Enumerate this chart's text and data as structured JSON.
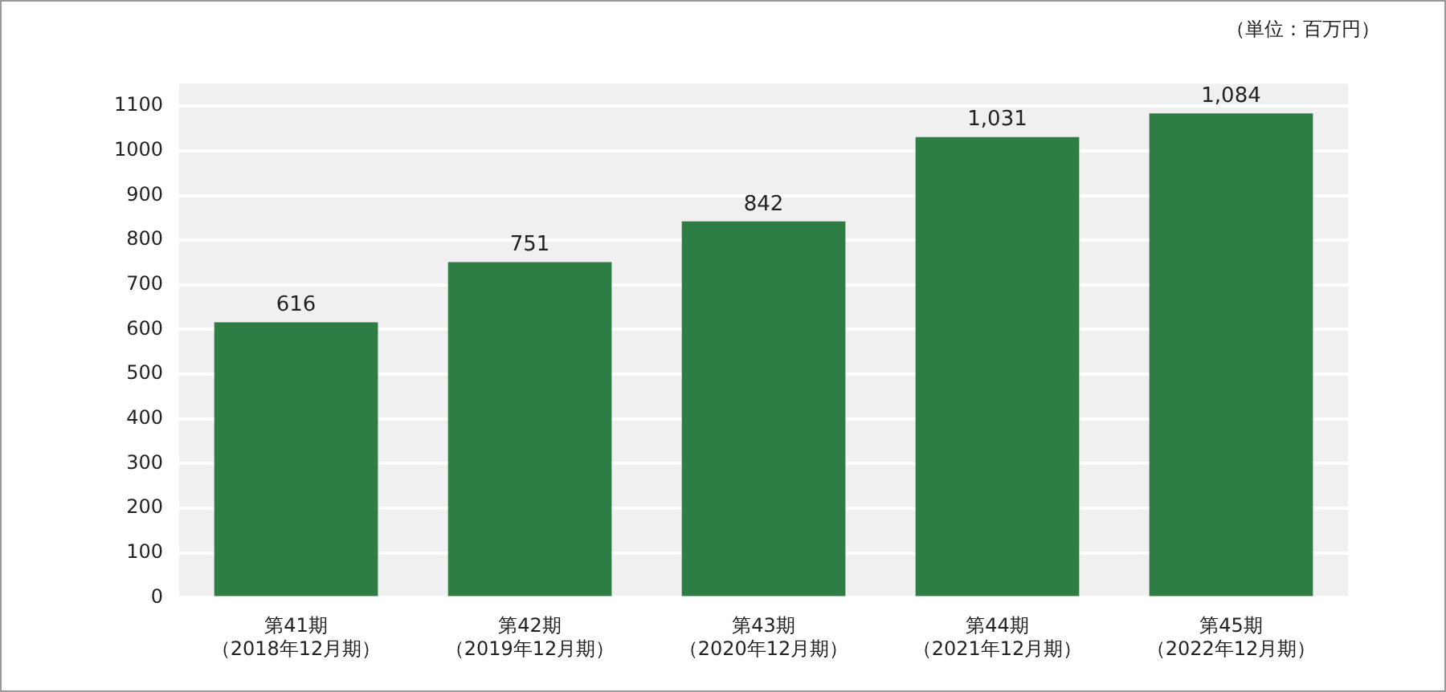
{
  "chart_data": {
    "type": "bar",
    "categories": [
      "第41期（2018年12月期）",
      "第42期（2019年12月期）",
      "第43期（2020年12月期）",
      "第44期（2021年12月期）",
      "第45期（2022年12月期）"
    ],
    "values": [
      616,
      751,
      842,
      1031,
      1084
    ],
    "value_labels": [
      "616",
      "751",
      "842",
      "1,031",
      "1,084"
    ],
    "color": "#2e7d45",
    "ylim": [
      0,
      1150
    ],
    "yticks": [
      0,
      100,
      200,
      300,
      400,
      500,
      600,
      700,
      800,
      900,
      1000,
      1100
    ],
    "grid": "y",
    "annotations": [
      "（単位：百万円）"
    ]
  }
}
